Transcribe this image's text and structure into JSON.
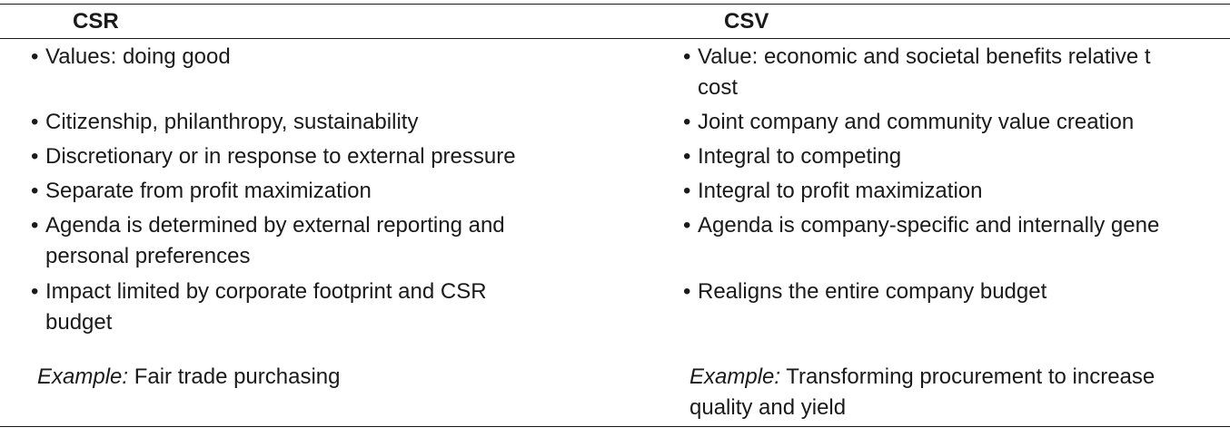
{
  "table": {
    "headers": {
      "csr": "CSR",
      "csv": "CSV"
    },
    "csr_items": [
      {
        "line1": "Values: doing good",
        "line2": ""
      },
      {
        "line1": "Citizenship, philanthropy, sustainability",
        "line2": ""
      },
      {
        "line1": "Discretionary or in response to external pressure",
        "line2": ""
      },
      {
        "line1": "Separate from profit maximization",
        "line2": ""
      },
      {
        "line1": "Agenda is determined by external reporting and",
        "line2": "personal preferences"
      },
      {
        "line1": "Impact limited by corporate footprint and CSR",
        "line2": "budget"
      }
    ],
    "csv_items": [
      {
        "line1": "Value: economic and societal benefits relative t",
        "line2": "cost"
      },
      {
        "line1": "Joint company and community value creation",
        "line2": ""
      },
      {
        "line1": "Integral to competing",
        "line2": ""
      },
      {
        "line1": "Integral to profit maximization",
        "line2": ""
      },
      {
        "line1": "Agenda is company-specific and internally gene",
        "line2": ""
      },
      {
        "line1": "Realigns the entire company budget",
        "line2": ""
      }
    ],
    "bullet": "•",
    "csr_example": {
      "label": "Example:",
      "text": " Fair trade purchasing"
    },
    "csv_example": {
      "label": "Example:",
      "text": " Transforming procurement to increase",
      "line2": "quality and yield"
    }
  }
}
